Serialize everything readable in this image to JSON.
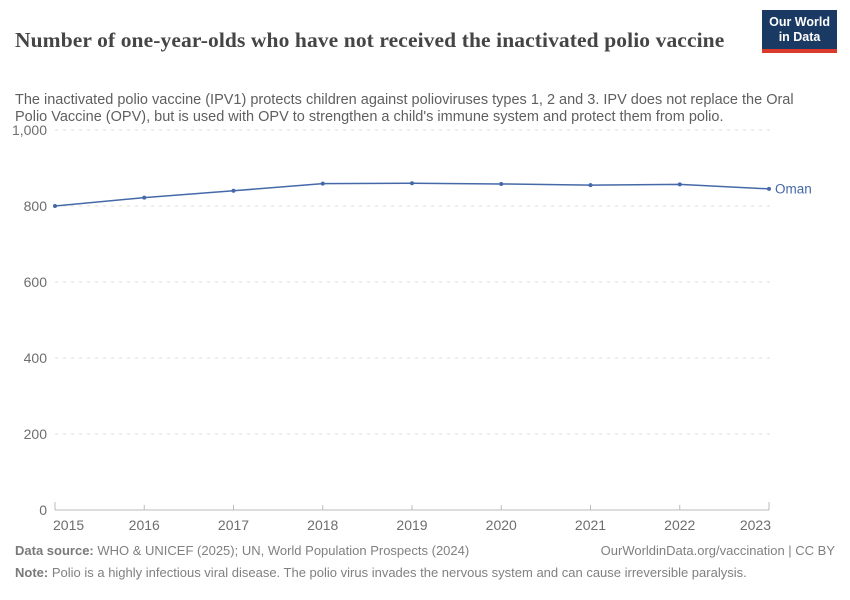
{
  "header": {
    "title": "Number of one-year-olds who have not received the inactivated polio vaccine",
    "subtitle": "The inactivated polio vaccine (IPV1) protects children against polioviruses types 1, 2 and 3. IPV does not replace the Oral Polio Vaccine (OPV), but is used with OPV to strengthen a child's immune system and protect them from polio.",
    "logo": {
      "line1": "Our World",
      "line2": "in Data",
      "bg_color": "#1a3a63",
      "accent_color": "#d93a2b"
    }
  },
  "chart_data": {
    "type": "line",
    "title": "Number of one-year-olds who have not received the inactivated polio vaccine",
    "x": [
      2015,
      2016,
      2017,
      2018,
      2019,
      2020,
      2021,
      2022,
      2023
    ],
    "x_tick_labels": [
      "2015",
      "2016",
      "2017",
      "2018",
      "2019",
      "2020",
      "2021",
      "2022",
      "2023"
    ],
    "series": [
      {
        "name": "Oman",
        "color": "#4569a8",
        "values": [
          800,
          822,
          840,
          859,
          860,
          858,
          855,
          857,
          845
        ]
      }
    ],
    "ylim": [
      0,
      1000
    ],
    "yticks": [
      0,
      200,
      400,
      600,
      800,
      1000
    ],
    "ytick_labels": [
      "0",
      "200",
      "400",
      "600",
      "800",
      "1,000"
    ],
    "xlabel": "",
    "ylabel": "",
    "grid": "horizontal-dashed",
    "legend_position": "line-end-label",
    "colors": {
      "line": "#4569a8",
      "gridline": "#dddddd",
      "axis": "#bbbbbb",
      "tick_label": "#6e6e6e"
    }
  },
  "footer": {
    "datasource_label": "Data source:",
    "datasource_text": " WHO & UNICEF (2025); UN, World Population Prospects (2024)",
    "link_text": "OurWorldinData.org/vaccination | CC BY",
    "note_label": "Note:",
    "note_text": " Polio is a highly infectious viral disease. The polio virus invades the nervous system and can cause irreversible paralysis."
  }
}
